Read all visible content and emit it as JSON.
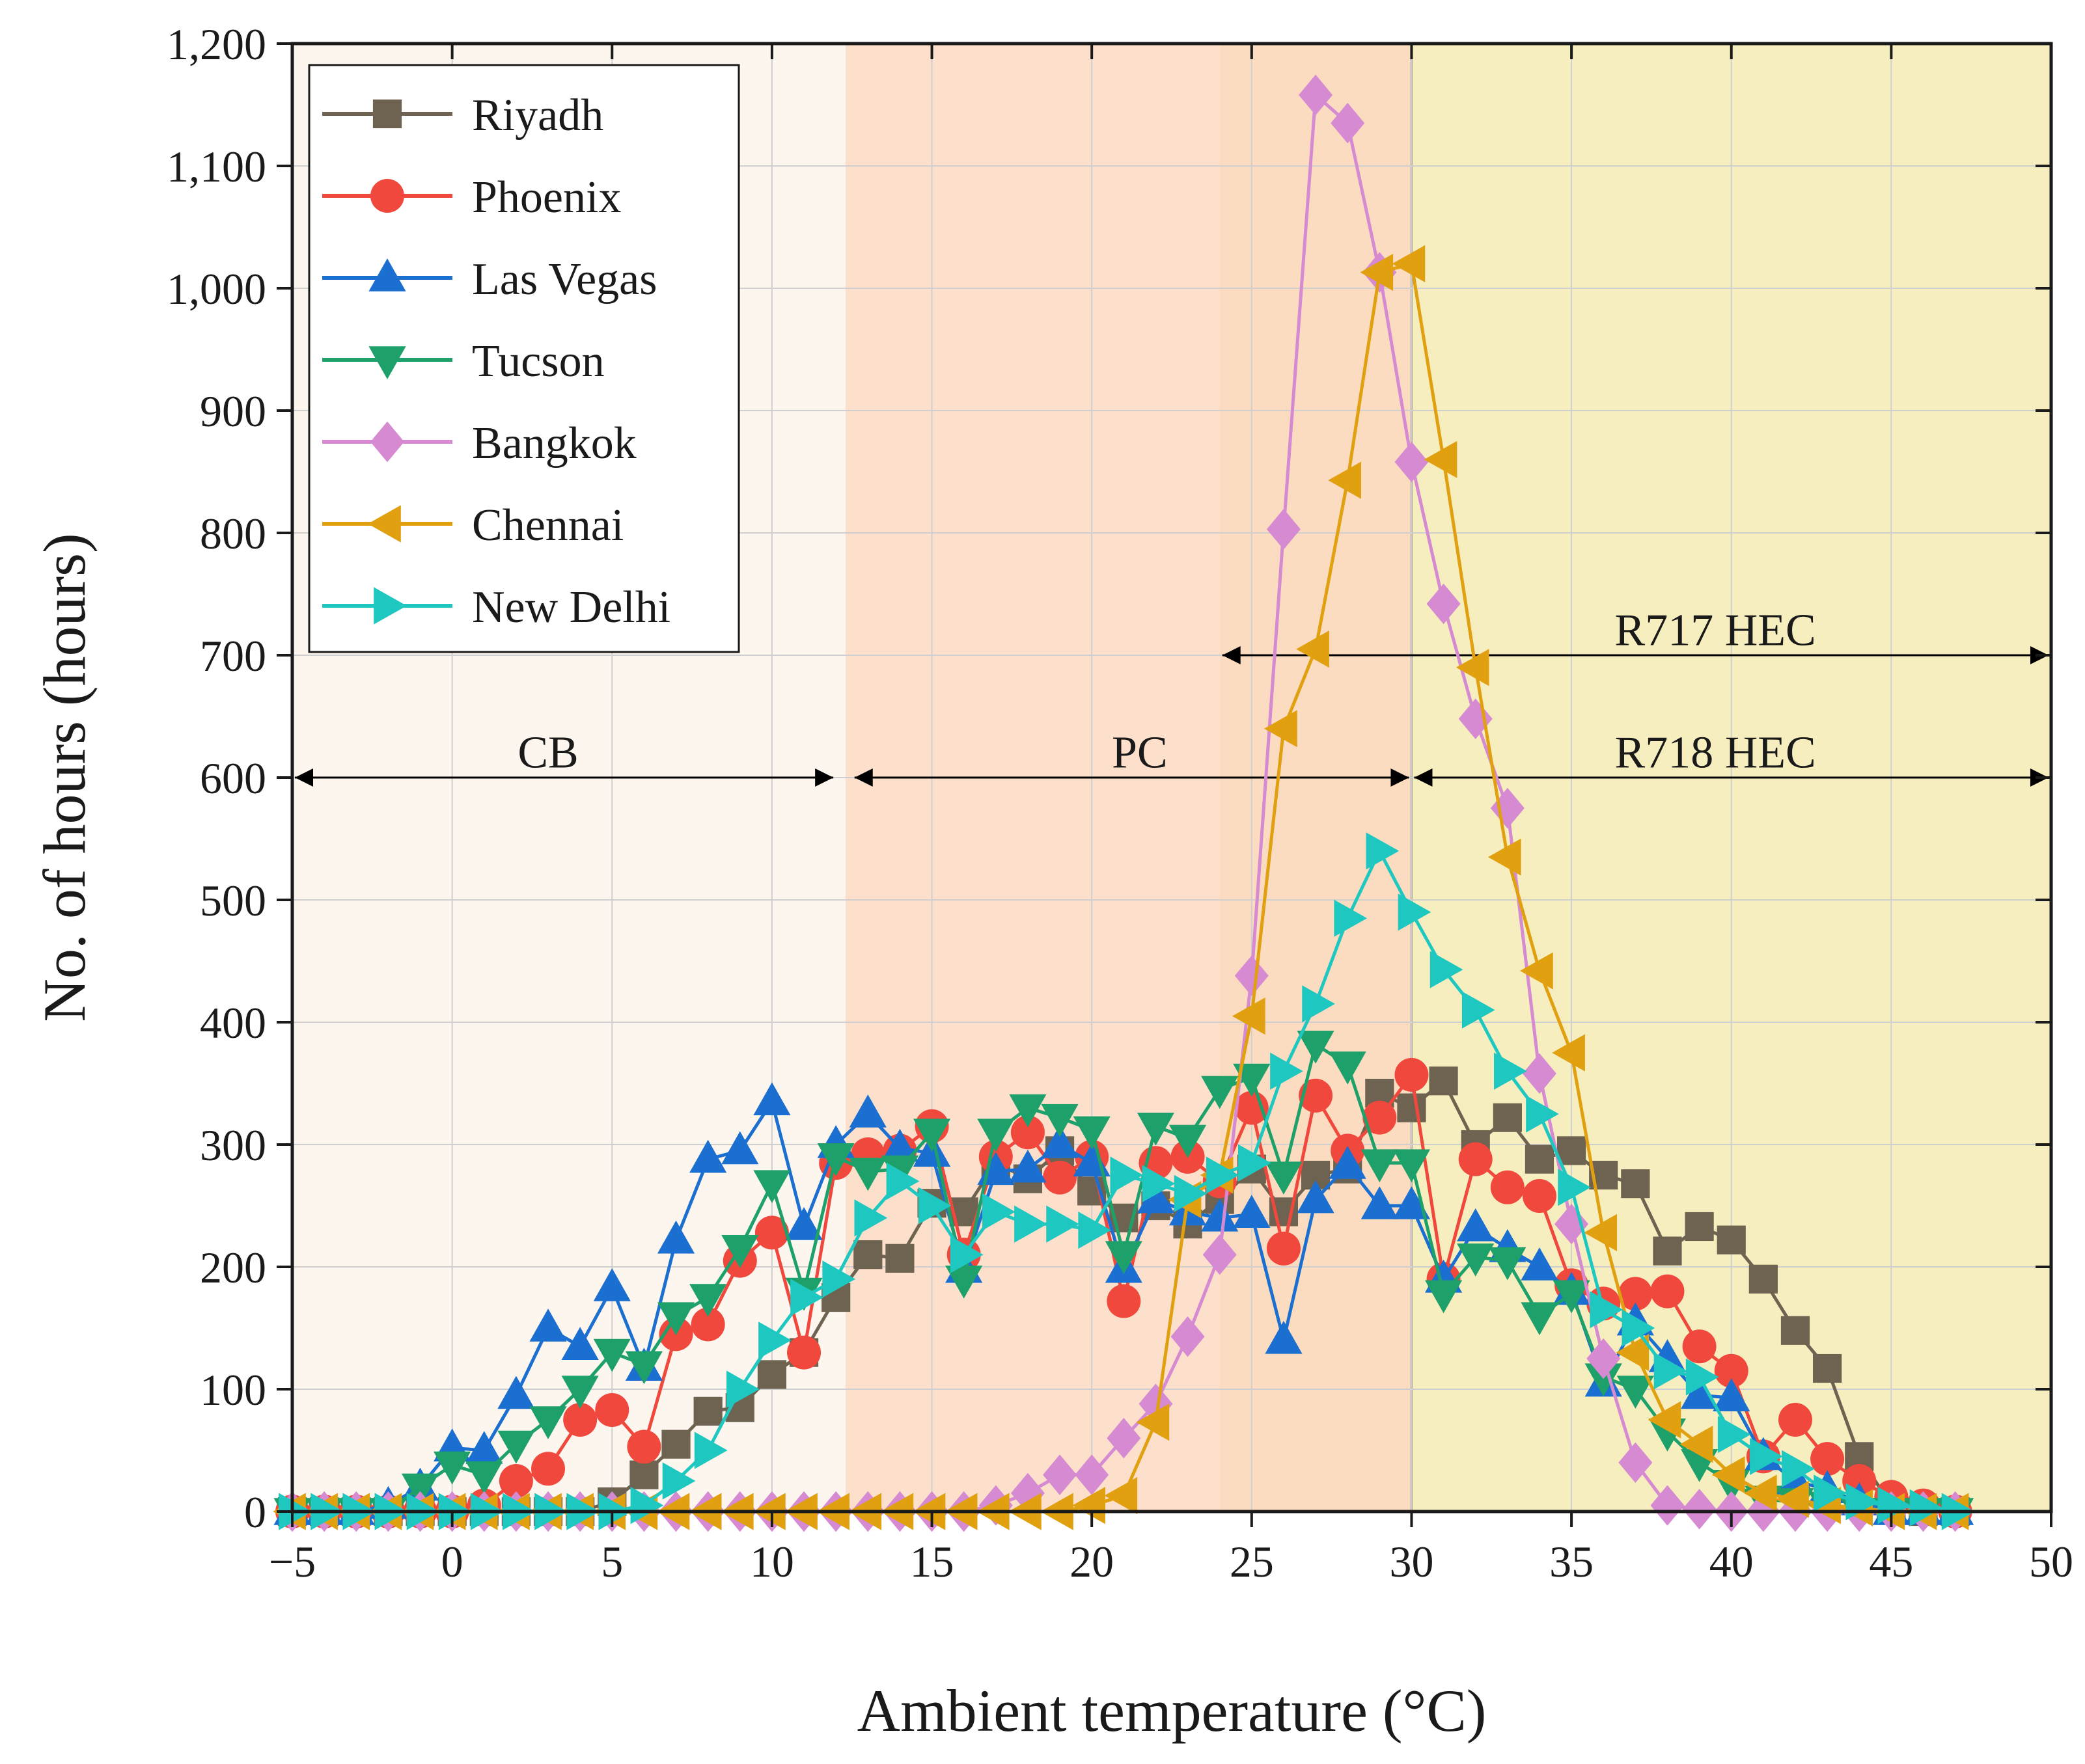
{
  "chart_data": {
    "type": "line",
    "title": "",
    "xlabel": "Ambient temperature (°C)",
    "ylabel": "No. of hours (hours)",
    "xlim": [
      -5,
      50
    ],
    "ylim": [
      0,
      1200
    ],
    "x_ticks": [
      -5,
      0,
      5,
      10,
      15,
      20,
      25,
      30,
      35,
      40,
      45,
      50
    ],
    "x_tick_labels": [
      "−5",
      "0",
      "5",
      "10",
      "15",
      "20",
      "25",
      "30",
      "35",
      "40",
      "45",
      "50"
    ],
    "y_ticks": [
      0,
      100,
      200,
      300,
      400,
      500,
      600,
      700,
      800,
      900,
      1000,
      1100,
      1200
    ],
    "y_tick_labels": [
      "0",
      "100",
      "200",
      "300",
      "400",
      "500",
      "600",
      "700",
      "800",
      "900",
      "1,000",
      "1,100",
      "1,200"
    ],
    "grid": true,
    "legend_position": "top-left",
    "x": [
      -5,
      -4,
      -3,
      -2,
      -1,
      0,
      1,
      2,
      3,
      4,
      5,
      6,
      7,
      8,
      9,
      10,
      11,
      12,
      13,
      14,
      15,
      16,
      17,
      18,
      19,
      20,
      21,
      22,
      23,
      24,
      25,
      26,
      27,
      28,
      29,
      30,
      31,
      32,
      33,
      34,
      35,
      36,
      37,
      38,
      39,
      40,
      41,
      42,
      43,
      44,
      45,
      46,
      47
    ],
    "series": [
      {
        "name": "Riyadh",
        "color": "#6e6250",
        "marker": "square",
        "values": [
          0,
          0,
          0,
          0,
          0,
          0,
          0,
          0,
          0,
          0,
          8,
          30,
          55,
          82,
          85,
          112,
          130,
          175,
          210,
          207,
          252,
          245,
          285,
          272,
          295,
          262,
          240,
          250,
          235,
          255,
          280,
          245,
          275,
          280,
          342,
          330,
          352,
          300,
          322,
          288,
          295,
          275,
          268,
          213,
          233,
          222,
          190,
          148,
          117,
          45,
          5,
          0,
          0
        ]
      },
      {
        "name": "Phoenix",
        "color": "#f0483c",
        "marker": "circle",
        "values": [
          0,
          0,
          0,
          0,
          0,
          0,
          5,
          25,
          35,
          75,
          83,
          53,
          145,
          153,
          205,
          228,
          130,
          285,
          292,
          295,
          315,
          210,
          290,
          310,
          273,
          290,
          172,
          285,
          290,
          270,
          330,
          215,
          340,
          295,
          322,
          357,
          190,
          288,
          265,
          258,
          185,
          170,
          178,
          180,
          135,
          115,
          45,
          75,
          43,
          25,
          12,
          5,
          0
        ]
      },
      {
        "name": "Las Vegas",
        "color": "#1a6fd0",
        "marker": "triangle-up",
        "values": [
          0,
          0,
          0,
          5,
          20,
          52,
          50,
          95,
          150,
          135,
          183,
          118,
          222,
          288,
          295,
          335,
          233,
          300,
          325,
          297,
          293,
          198,
          278,
          280,
          300,
          285,
          198,
          255,
          245,
          240,
          243,
          140,
          255,
          283,
          250,
          250,
          190,
          232,
          215,
          200,
          180,
          105,
          155,
          125,
          95,
          93,
          45,
          25,
          18,
          8,
          0,
          0,
          0
        ]
      },
      {
        "name": "Tucson",
        "color": "#1ea06a",
        "marker": "triangle-down",
        "values": [
          0,
          0,
          0,
          0,
          20,
          38,
          30,
          55,
          75,
          100,
          130,
          120,
          160,
          175,
          215,
          268,
          180,
          290,
          278,
          280,
          310,
          190,
          310,
          330,
          322,
          312,
          210,
          315,
          305,
          345,
          355,
          275,
          382,
          365,
          285,
          285,
          178,
          208,
          205,
          160,
          178,
          110,
          100,
          65,
          40,
          23,
          10,
          8,
          5,
          0,
          0,
          0,
          0
        ]
      },
      {
        "name": "Bangkok",
        "color": "#d58ad2",
        "marker": "diamond",
        "values": [
          0,
          0,
          0,
          0,
          0,
          0,
          0,
          0,
          0,
          0,
          0,
          0,
          0,
          0,
          0,
          0,
          0,
          0,
          0,
          0,
          0,
          0,
          5,
          15,
          30,
          30,
          60,
          88,
          143,
          210,
          438,
          803,
          1158,
          1135,
          1013,
          858,
          742,
          648,
          575,
          358,
          235,
          125,
          40,
          5,
          2,
          0,
          0,
          0,
          0,
          0,
          0,
          0,
          0
        ]
      },
      {
        "name": "Chennai",
        "color": "#e0a010",
        "marker": "triangle-left",
        "values": [
          0,
          0,
          0,
          0,
          0,
          0,
          0,
          0,
          0,
          0,
          0,
          0,
          0,
          0,
          0,
          0,
          0,
          0,
          0,
          0,
          0,
          0,
          0,
          0,
          0,
          5,
          13,
          73,
          255,
          275,
          405,
          640,
          705,
          843,
          1013,
          1020,
          860,
          690,
          535,
          442,
          375,
          228,
          130,
          75,
          55,
          30,
          15,
          10,
          5,
          3,
          0,
          0,
          0
        ]
      },
      {
        "name": "New Delhi",
        "color": "#1ec8c0",
        "marker": "triangle-right",
        "values": [
          0,
          0,
          0,
          0,
          0,
          0,
          0,
          0,
          0,
          0,
          0,
          5,
          25,
          50,
          100,
          140,
          175,
          190,
          240,
          270,
          250,
          210,
          245,
          235,
          235,
          230,
          275,
          268,
          260,
          275,
          285,
          360,
          415,
          485,
          540,
          490,
          443,
          410,
          360,
          325,
          265,
          165,
          150,
          115,
          110,
          63,
          45,
          35,
          15,
          8,
          5,
          3,
          0
        ]
      }
    ],
    "shaded_regions": [
      {
        "x": [
          -5,
          12.3
        ],
        "color": "#fdf6ee"
      },
      {
        "x": [
          12.3,
          24
        ],
        "color": "#fce0cc"
      },
      {
        "x": [
          24,
          30
        ],
        "color": "#fbdcc0"
      },
      {
        "x": [
          30,
          50
        ],
        "color": "#f7eec0"
      }
    ],
    "annotations": [
      {
        "label": "CB",
        "x": 3,
        "y": 595,
        "from": -5,
        "to": 12,
        "y_arrow": 600
      },
      {
        "label": "PC",
        "x": 21.5,
        "y": 595,
        "from": 12.5,
        "to": 30,
        "y_arrow": 600
      },
      {
        "label": "R718 HEC",
        "x": 39.5,
        "y": 595,
        "from": 30,
        "to": 50,
        "y_arrow": 600
      },
      {
        "label": "R717 HEC",
        "x": 39.5,
        "y": 695,
        "from": 24,
        "to": 50,
        "y_arrow": 700
      }
    ]
  }
}
